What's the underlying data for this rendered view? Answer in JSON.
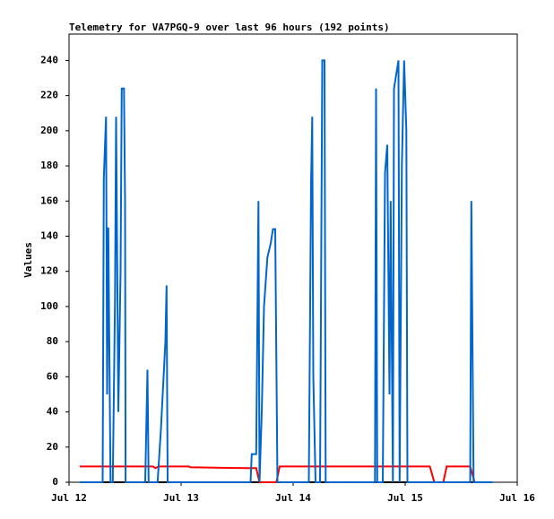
{
  "chart_data": {
    "type": "line",
    "title": "Telemetry for VA7PGQ-9 over last 96 hours (192 points)",
    "y_label": "Values",
    "xlim": [
      0,
      4
    ],
    "xticks": [
      {
        "value": 0,
        "label": "Jul 12"
      },
      {
        "value": 1,
        "label": "Jul 13"
      },
      {
        "value": 2,
        "label": "Jul 14"
      },
      {
        "value": 3,
        "label": "Jul 15"
      },
      {
        "value": 4,
        "label": "Jul 16"
      }
    ],
    "ylim": [
      0,
      255
    ],
    "yticks": [
      0,
      20,
      40,
      60,
      80,
      100,
      120,
      140,
      160,
      180,
      200,
      220,
      240
    ],
    "grid": false,
    "series": [
      {
        "color": "#000000",
        "x": [
          0.096,
          3.78
        ],
        "values": [
          0,
          0
        ]
      },
      {
        "color": "#ff0000",
        "x": [
          0.096,
          0.75,
          0.77,
          0.8,
          1.07,
          1.08,
          1.6,
          1.67,
          1.7,
          1.85,
          1.88,
          3.22,
          3.26,
          3.34,
          3.37,
          3.58,
          3.62,
          3.78
        ],
        "values": [
          9,
          9,
          8,
          9,
          9,
          8.5,
          8,
          8,
          0,
          0,
          9,
          9,
          0,
          0,
          9,
          9,
          0,
          0
        ]
      },
      {
        "color": "#0066cc",
        "x": [
          0.096,
          0.3,
          0.31,
          0.33,
          0.34,
          0.35,
          0.37,
          0.39,
          0.41,
          0.42,
          0.44,
          0.46,
          0.47,
          0.49,
          0.5,
          0.505,
          0.68,
          0.7,
          0.71,
          0.79,
          0.82,
          0.86,
          0.87,
          0.88,
          1.62,
          1.63,
          1.67,
          1.69,
          1.7,
          1.72,
          1.74,
          1.77,
          1.8,
          1.82,
          1.84,
          1.86,
          2.14,
          2.16,
          2.17,
          2.18,
          2.2,
          2.24,
          2.26,
          2.28,
          2.29,
          2.73,
          2.74,
          2.75,
          2.8,
          2.82,
          2.84,
          2.86,
          2.87,
          2.89,
          2.9,
          2.92,
          2.94,
          2.95,
          2.97,
          2.99,
          3.01,
          3.02,
          3.58,
          3.59,
          3.61,
          3.78
        ],
        "values": [
          0,
          0,
          173,
          208,
          50,
          145,
          0,
          0,
          104,
          208,
          40,
          120,
          224,
          224,
          160,
          0,
          0,
          64,
          0,
          0,
          30,
          80,
          112,
          0,
          0,
          16,
          16,
          160,
          0,
          40,
          100,
          128,
          136,
          144,
          144,
          0,
          0,
          170,
          208,
          60,
          0,
          0,
          240,
          240,
          0,
          0,
          224,
          0,
          0,
          176,
          192,
          50,
          160,
          0,
          224,
          232,
          240,
          0,
          180,
          240,
          200,
          0,
          0,
          160,
          0,
          0
        ]
      }
    ]
  }
}
